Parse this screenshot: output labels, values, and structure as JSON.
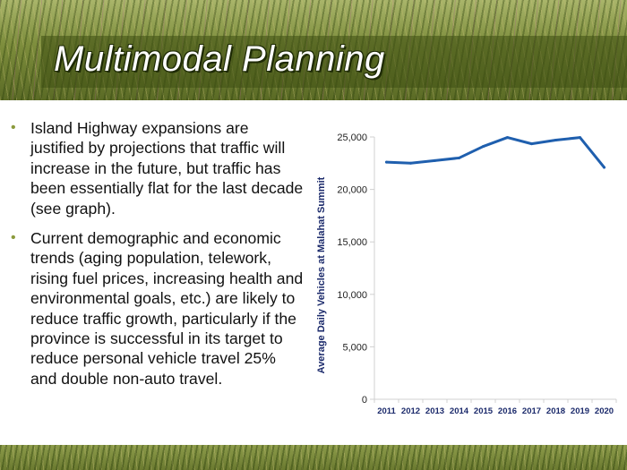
{
  "title": "Multimodal Planning",
  "bullets": [
    "Island Highway expansions are justified by projections that traffic will increase in the future, but traffic has been essentially flat for the last decade (see graph).",
    "Current demographic and economic trends (aging population, telework, rising fuel prices, increasing health and environmental goals, etc.) are likely to reduce traffic growth, particularly if the province is successful in its target to reduce personal vehicle travel 25% and double non-auto travel."
  ],
  "bullet_symbol": "•",
  "chart_data": {
    "type": "line",
    "title": "",
    "xlabel": "",
    "ylabel": "Average Daily Vehicles at Malahat Summit",
    "categories": [
      "2011",
      "2012",
      "2013",
      "2014",
      "2015",
      "2016",
      "2017",
      "2018",
      "2019",
      "2020"
    ],
    "series": [
      {
        "name": "Average Daily Vehicles",
        "values": [
          22600,
          22500,
          22750,
          23000,
          24100,
          24950,
          24350,
          24700,
          24950,
          22100
        ],
        "color": "#1f5fae"
      }
    ],
    "ylim": [
      0,
      25000
    ],
    "yticks": [
      0,
      5000,
      10000,
      15000,
      20000,
      25000
    ],
    "ytick_labels": [
      "0",
      "5,000",
      "10,000",
      "15,000",
      "20,000",
      "25,000"
    ],
    "grid": false,
    "axis_color": "#d0d0d0",
    "label_color": "#1b2a6b"
  }
}
